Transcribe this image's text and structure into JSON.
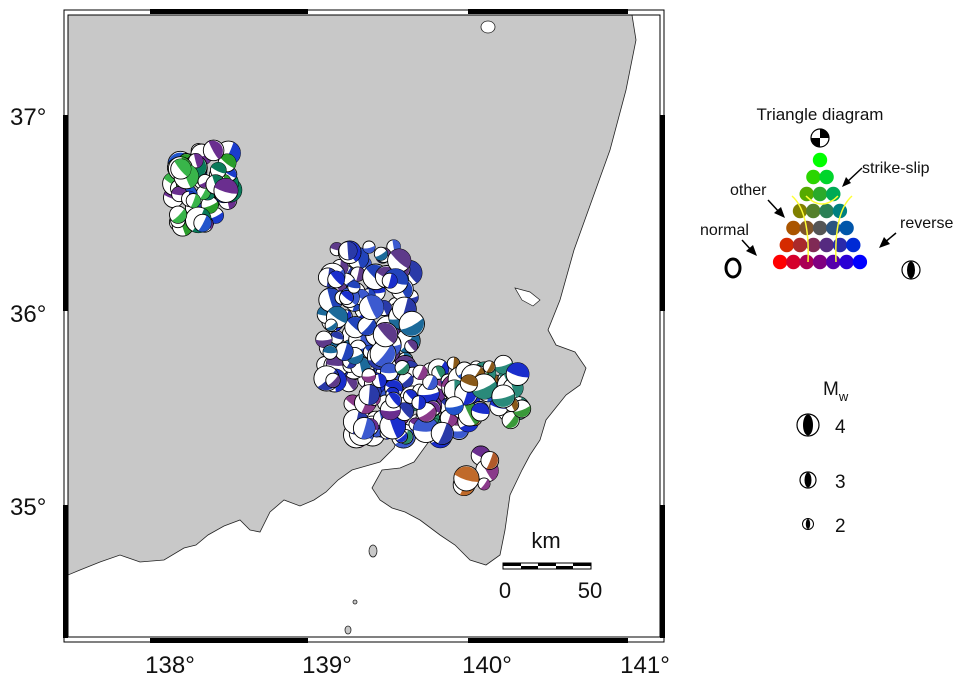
{
  "map": {
    "lon_labels": [
      "138°",
      "139°",
      "140°",
      "141°"
    ],
    "lat_labels": [
      "37°",
      "36°",
      "35°"
    ],
    "land_color": "#c8c8c8",
    "sea_color": "#ffffff"
  },
  "scalebar": {
    "unit": "km",
    "label_start": "0",
    "label_end": "50"
  },
  "triangle_legend": {
    "title": "Triangle diagram",
    "labels": {
      "strike_slip": "strike-slip",
      "other": "other",
      "normal": "normal",
      "reverse": "reverse"
    },
    "colors": {
      "normal": "#ff0000",
      "reverse": "#0000ff",
      "strike_slip": "#00ff00",
      "boundary": "#ffff00"
    }
  },
  "magnitude_legend": {
    "title": "M",
    "subscript": "w",
    "entries": [
      "4",
      "3",
      "2"
    ]
  },
  "clusters": [
    {
      "lon": 138.2,
      "lat": 36.65,
      "count": 60,
      "mix": "green-blue"
    },
    {
      "lon": 139.25,
      "lat": 36.0,
      "count": 120,
      "mix": "blue"
    },
    {
      "lon": 139.5,
      "lat": 35.55,
      "count": 90,
      "mix": "blue-purple"
    },
    {
      "lon": 140.0,
      "lat": 35.6,
      "count": 40,
      "mix": "teal"
    },
    {
      "lon": 139.9,
      "lat": 35.2,
      "count": 6,
      "mix": "orange-purple"
    }
  ]
}
